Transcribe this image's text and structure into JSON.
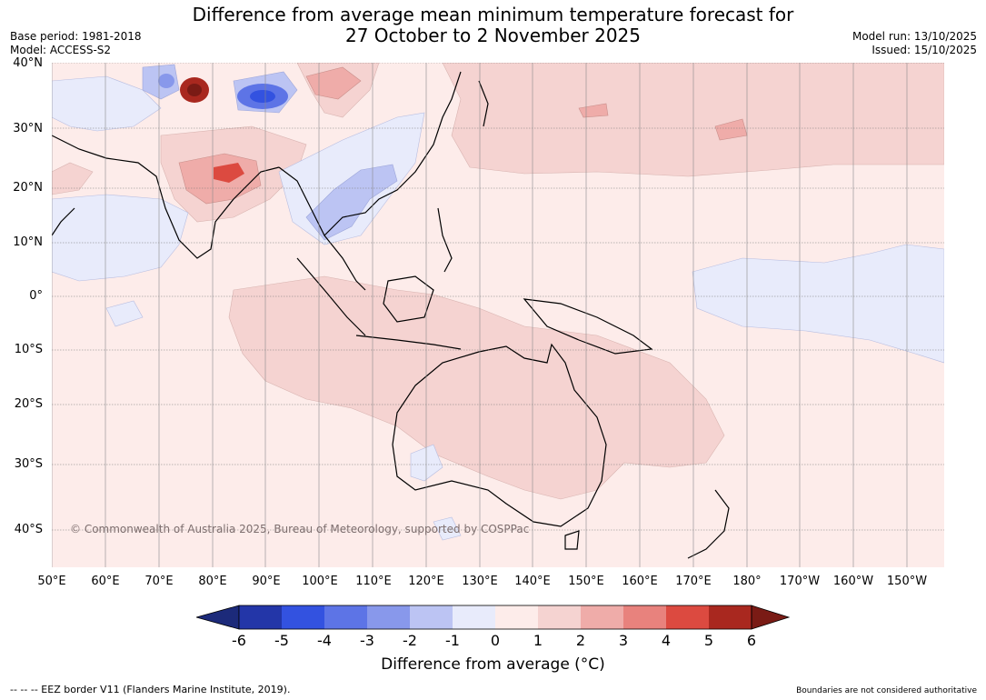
{
  "title": {
    "line1": "Difference from average mean minimum temperature forecast for",
    "line2": "27 October to 2 November 2025"
  },
  "meta": {
    "base_period": "Base period: 1981-2018",
    "model": "Model: ACCESS-S2",
    "model_run": "Model run: 13/10/2025",
    "issued": "Issued: 15/10/2025"
  },
  "latitudes": [
    "40°N",
    "30°N",
    "20°N",
    "10°N",
    "0°",
    "10°S",
    "20°S",
    "30°S",
    "40°S"
  ],
  "longitudes": [
    "50°E",
    "60°E",
    "70°E",
    "80°E",
    "90°E",
    "100°E",
    "110°E",
    "120°E",
    "130°E",
    "140°E",
    "150°E",
    "160°E",
    "170°E",
    "180°",
    "170°W",
    "160°W",
    "150°W"
  ],
  "map": {
    "copyright": "© Commonwealth of Australia 2025, Bureau of Meteorology, supported by COSPPac"
  },
  "colorbar": {
    "ticks": [
      "-6",
      "-5",
      "-4",
      "-3",
      "-2",
      "-1",
      "0",
      "1",
      "2",
      "3",
      "4",
      "5",
      "6"
    ],
    "colors": [
      "#2336a8",
      "#3352e0",
      "#5d74e6",
      "#8898eb",
      "#bcc4f3",
      "#e8ebfb",
      "#fdecea",
      "#f5d3d1",
      "#efaca9",
      "#e8827d",
      "#dc4a40",
      "#a9281f"
    ],
    "under_color": "#1c2a7a",
    "over_color": "#7a1b15",
    "label": "Difference from average (°C)"
  },
  "footer": {
    "eez": "--  --  -- EEZ border V11 (Flanders Marine Institute, 2019).",
    "note": "Boundaries are not considered authoritative"
  }
}
